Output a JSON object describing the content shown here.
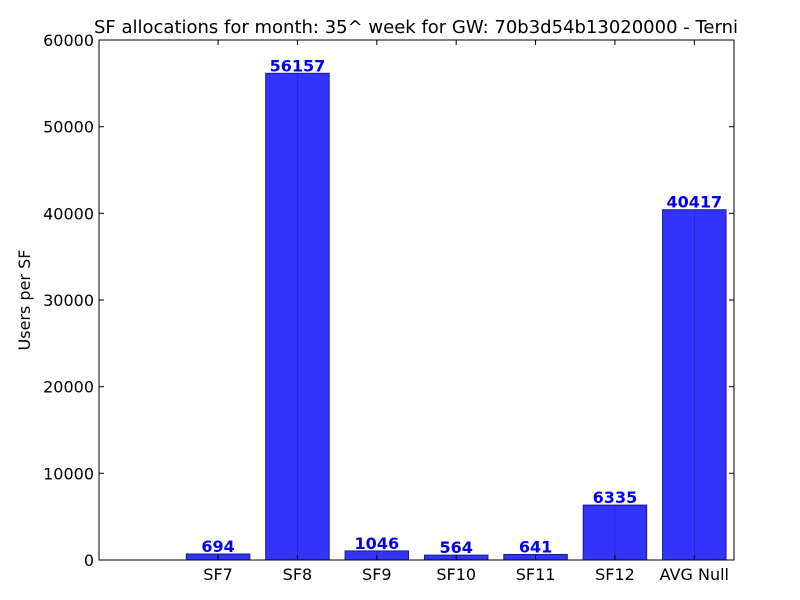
{
  "chart_data": {
    "type": "bar",
    "title": "SF allocations for month: 35^ week for GW: 70b3d54b13020000 - Terni",
    "ylabel": "Users per SF",
    "xlabel": "",
    "categories": [
      "SF7",
      "SF8",
      "SF9",
      "SF10",
      "SF11",
      "SF12",
      "AVG Null"
    ],
    "values": [
      694,
      56157,
      1046,
      564,
      641,
      6335,
      40417
    ],
    "data_labels": [
      "694",
      "56157",
      "1046",
      "564",
      "641",
      "6335",
      "40417"
    ],
    "ylim": [
      0,
      60000
    ],
    "yticks": [
      0,
      10000,
      20000,
      30000,
      40000,
      50000,
      60000
    ],
    "ytick_labels": [
      "0",
      "10000",
      "20000",
      "30000",
      "40000",
      "50000",
      "60000"
    ],
    "grid": false,
    "legend": "none",
    "colors": {
      "bar": "#3333ff",
      "bar_edge": "#1a1a80",
      "data_label": "#0000ee",
      "axis": "#000000"
    }
  }
}
